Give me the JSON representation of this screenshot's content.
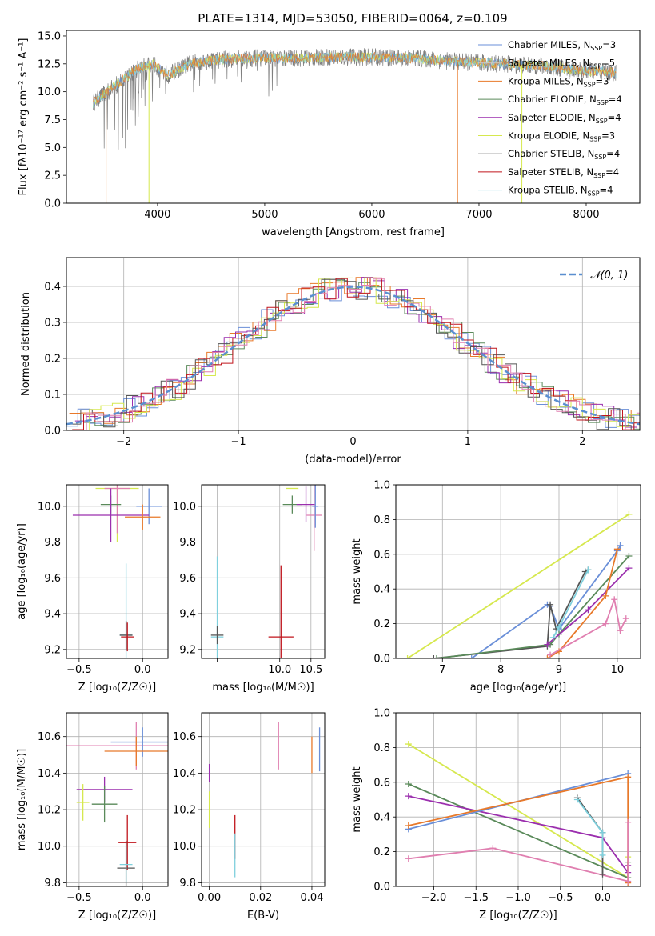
{
  "figure_title": "PLATE=1314, MJD=53050, FIBERID=0064, z=0.109",
  "colors": {
    "chabrier_miles": "#6a8fd8",
    "salpeter_miles": "#e8e8e8",
    "kroupa_miles": "#e8792a",
    "chabrier_elodie": "#5a8a5a",
    "salpeter_elodie": "#9b2fae",
    "kroupa_elodie": "#d6e84e",
    "chabrier_stelib": "#555555",
    "salpeter_stelib": "#c0141b",
    "kroupa_stelib": "#7fd0dd",
    "pink": "#e07fb0",
    "data_gray": "#7f7f7f"
  },
  "chart_data": [
    {
      "type": "line",
      "title": "PLATE=1314, MJD=53050, FIBERID=0064, z=0.109",
      "xlabel": "wavelength [Angstrom, rest frame]",
      "ylabel": "Flux [fλ10⁻¹⁷ erg cm⁻² s⁻¹ A⁻¹]",
      "xlim": [
        3150,
        8500
      ],
      "ylim": [
        0,
        15.5
      ],
      "xticks": [
        4000,
        5000,
        6000,
        7000,
        8000
      ],
      "yticks": [
        0.0,
        2.5,
        5.0,
        7.5,
        10.0,
        12.5,
        15.0
      ],
      "xtick_labels": [
        "4000",
        "5000",
        "6000",
        "7000",
        "8000"
      ],
      "ytick_labels": [
        "0.0",
        "2.5",
        "5.0",
        "7.5",
        "10.0",
        "12.5",
        "15.0"
      ],
      "legend": [
        "Chabrier MILES, N_SSP=3",
        "Salpeter MILES, N_SSP=5",
        "Kroupa MILES, N_SSP=3",
        "Chabrier ELODIE, N_SSP=4",
        "Salpeter ELODIE, N_SSP=4",
        "Kroupa ELODIE, N_SSP=3",
        "Chabrier STELIB, N_SSP=4",
        "Salpeter STELIB, N_SSP=4",
        "Kroupa STELIB, N_SSP=4"
      ],
      "legend_placement": "right",
      "spectrum_envelope": {
        "x": [
          3400,
          3600,
          3800,
          3950,
          4100,
          4300,
          4500,
          4800,
          5000,
          5300,
          5600,
          6000,
          6400,
          6800,
          7200,
          7600,
          8000,
          8280
        ],
        "y": [
          9.0,
          10.5,
          12.0,
          12.5,
          11.5,
          12.5,
          12.8,
          13.0,
          13.0,
          13.0,
          13.1,
          13.1,
          13.0,
          12.7,
          12.5,
          12.3,
          11.9,
          11.7
        ]
      },
      "model_dropouts": [
        3520,
        3920,
        6800,
        7400
      ]
    },
    {
      "type": "histogram",
      "xlabel": "(data-model)/error",
      "ylabel": "Normed distribution",
      "xlim": [
        -2.5,
        2.5
      ],
      "ylim": [
        0,
        0.48
      ],
      "xticks": [
        -2,
        -1,
        0,
        1,
        2
      ],
      "xtick_labels": [
        "−2",
        "−1",
        "0",
        "1",
        "2"
      ],
      "yticks": [
        0.0,
        0.1,
        0.2,
        0.3,
        0.4
      ],
      "ytick_labels": [
        "0.0",
        "0.1",
        "0.2",
        "0.3",
        "0.4"
      ],
      "reference_curve": "N(0,1)",
      "legend": [
        "𝒩(0, 1)"
      ],
      "legend_placement": "top-right",
      "grid": true,
      "bin_width": 0.1
    },
    {
      "type": "errorbar",
      "xlabel": "Z [log₁₀(Z/Z☉)]",
      "ylabel": "age  [log₁₀(age/yr)]",
      "xlim": [
        -0.6,
        0.2
      ],
      "ylim": [
        9.15,
        10.12
      ],
      "xticks": [
        -0.5,
        0.0
      ],
      "xtick_labels": [
        "−0.5",
        "0.0"
      ],
      "yticks": [
        9.2,
        9.4,
        9.6,
        9.8,
        10.0
      ],
      "ytick_labels": [
        "9.2",
        "9.4",
        "9.6",
        "9.8",
        "10.0"
      ],
      "points": [
        {
          "x": -0.2,
          "y": 10.1,
          "xerr": 0.17,
          "yerr": 0.3,
          "color": "kroupa_elodie"
        },
        {
          "x": -0.2,
          "y": 10.1,
          "xerr": 0.1,
          "yerr": 0.25,
          "color": "pink"
        },
        {
          "x": 0.05,
          "y": 10.0,
          "xerr": 0.1,
          "yerr": 0.1,
          "color": "chabrier_miles"
        },
        {
          "x": -0.25,
          "y": 10.01,
          "xerr": 0.08,
          "yerr": 0.05,
          "color": "chabrier_elodie"
        },
        {
          "x": -0.25,
          "y": 9.95,
          "xerr": 0.3,
          "yerr": 0.15,
          "color": "salpeter_elodie"
        },
        {
          "x": 0.0,
          "y": 9.94,
          "xerr": 0.14,
          "yerr": 0.07,
          "color": "kroupa_miles"
        },
        {
          "x": -0.13,
          "y": 9.28,
          "xerr": 0.05,
          "yerr": 0.4,
          "color": "kroupa_stelib"
        },
        {
          "x": -0.13,
          "y": 9.28,
          "xerr": 0.05,
          "yerr": 0.08,
          "color": "chabrier_stelib"
        },
        {
          "x": -0.12,
          "y": 9.27,
          "xerr": 0.05,
          "yerr": 0.08,
          "color": "salpeter_stelib"
        }
      ]
    },
    {
      "type": "errorbar",
      "xlabel": "mass [log₁₀(M/M☉)]",
      "ylabel": "",
      "xlim": [
        8.75,
        10.72
      ],
      "ylim": [
        9.15,
        10.12
      ],
      "xticks": [
        9.0,
        10.0,
        10.5
      ],
      "xtick_labels": [
        "",
        "10.0",
        "10.5"
      ],
      "yticks": [
        9.2,
        9.4,
        9.6,
        9.8,
        10.0
      ],
      "ytick_labels": [
        "9.2",
        "9.4",
        "9.6",
        "9.8",
        "10.0"
      ],
      "points": [
        {
          "x": 10.2,
          "y": 10.1,
          "xerr": 0.1,
          "yerr": 0.0,
          "color": "kroupa_elodie"
        },
        {
          "x": 10.2,
          "y": 10.01,
          "xerr": 0.15,
          "yerr": 0.05,
          "color": "chabrier_elodie"
        },
        {
          "x": 10.42,
          "y": 10.01,
          "xerr": 0.15,
          "yerr": 0.1,
          "color": "salpeter_elodie"
        },
        {
          "x": 10.55,
          "y": 9.95,
          "xerr": 0.12,
          "yerr": 0.2,
          "color": "pink"
        },
        {
          "x": 10.57,
          "y": 10.0,
          "xerr": 0.05,
          "yerr": 0.12,
          "color": "chabrier_miles"
        },
        {
          "x": 9.0,
          "y": 9.27,
          "xerr": 0.1,
          "yerr": 0.45,
          "color": "kroupa_stelib"
        },
        {
          "x": 9.0,
          "y": 9.28,
          "xerr": 0.1,
          "yerr": 0.05,
          "color": "chabrier_stelib"
        },
        {
          "x": 10.02,
          "y": 9.27,
          "xerr": 0.2,
          "yerr": 0.4,
          "color": "salpeter_stelib"
        }
      ]
    },
    {
      "type": "line",
      "xlabel": "age  [log₁₀(age/yr)]",
      "ylabel": "mass weight",
      "xlim": [
        6.2,
        10.4
      ],
      "ylim": [
        0,
        1.0
      ],
      "xticks": [
        7,
        8,
        9,
        10
      ],
      "xtick_labels": [
        "7",
        "8",
        "9",
        "10"
      ],
      "yticks": [
        0.0,
        0.2,
        0.4,
        0.6,
        0.8,
        1.0
      ],
      "ytick_labels": [
        "0.0",
        "0.2",
        "0.4",
        "0.6",
        "0.8",
        "1.0"
      ],
      "series": [
        {
          "color": "kroupa_elodie",
          "x": [
            6.4,
            10.2
          ],
          "y": [
            0.0,
            0.83
          ]
        },
        {
          "color": "chabrier_miles",
          "x": [
            7.5,
            8.8,
            8.85,
            9.0,
            10.0,
            10.05
          ],
          "y": [
            0.0,
            0.31,
            0.3,
            0.17,
            0.62,
            0.65
          ]
        },
        {
          "color": "chabrier_stelib",
          "x": [
            6.85,
            8.8,
            8.85,
            8.95,
            9.45,
            9.5
          ],
          "y": [
            0.0,
            0.07,
            0.31,
            0.17,
            0.5,
            0.51
          ]
        },
        {
          "color": "chabrier_elodie",
          "x": [
            6.9,
            8.85,
            9.0,
            10.2
          ],
          "y": [
            0.0,
            0.08,
            0.14,
            0.59
          ]
        },
        {
          "color": "salpeter_elodie",
          "x": [
            8.8,
            9.5,
            10.2
          ],
          "y": [
            0.08,
            0.28,
            0.52
          ]
        },
        {
          "color": "kroupa_miles",
          "x": [
            8.8,
            9.0,
            9.8,
            10.0
          ],
          "y": [
            0.0,
            0.04,
            0.36,
            0.63
          ]
        },
        {
          "color": "pink",
          "x": [
            8.85,
            9.8,
            9.95,
            10.05,
            10.15
          ],
          "y": [
            0.02,
            0.2,
            0.34,
            0.16,
            0.23
          ]
        },
        {
          "color": "kroupa_stelib",
          "x": [
            8.9,
            9.0,
            9.5
          ],
          "y": [
            0.12,
            0.18,
            0.51
          ]
        }
      ]
    },
    {
      "type": "errorbar",
      "xlabel": "Z [log₁₀(Z/Z☉)]",
      "ylabel": "mass [log₁₀(M/M☉)]",
      "xlim": [
        -0.6,
        0.2
      ],
      "ylim": [
        9.78,
        10.73
      ],
      "xticks": [
        -0.5,
        0.0
      ],
      "xtick_labels": [
        "−0.5",
        "0.0"
      ],
      "yticks": [
        9.8,
        10.0,
        10.2,
        10.4,
        10.6
      ],
      "ytick_labels": [
        "9.8",
        "10.0",
        "10.2",
        "10.4",
        "10.6"
      ],
      "points": [
        {
          "x": -0.05,
          "y": 10.55,
          "xerr": 0.6,
          "yerr": 0.13,
          "color": "pink"
        },
        {
          "x": 0.0,
          "y": 10.57,
          "xerr": 0.25,
          "yerr": 0.08,
          "color": "chabrier_miles"
        },
        {
          "x": -0.05,
          "y": 10.52,
          "xerr": 0.25,
          "yerr": 0.08,
          "color": "kroupa_miles"
        },
        {
          "x": -0.3,
          "y": 10.31,
          "xerr": 0.22,
          "yerr": 0.07,
          "color": "salpeter_elodie"
        },
        {
          "x": -0.47,
          "y": 10.24,
          "xerr": 0.05,
          "yerr": 0.1,
          "color": "kroupa_elodie"
        },
        {
          "x": -0.3,
          "y": 10.23,
          "xerr": 0.1,
          "yerr": 0.1,
          "color": "chabrier_elodie"
        },
        {
          "x": -0.12,
          "y": 10.02,
          "xerr": 0.07,
          "yerr": 0.15,
          "color": "salpeter_stelib"
        },
        {
          "x": -0.13,
          "y": 9.88,
          "xerr": 0.07,
          "yerr": 0.15,
          "color": "chabrier_stelib"
        },
        {
          "x": -0.13,
          "y": 9.9,
          "xerr": 0.05,
          "yerr": 0.1,
          "color": "kroupa_stelib"
        }
      ]
    },
    {
      "type": "errorbar",
      "xlabel": "E(B-V)",
      "ylabel": "",
      "xlim": [
        -0.003,
        0.045
      ],
      "ylim": [
        9.78,
        10.73
      ],
      "xticks": [
        0.0,
        0.02,
        0.04
      ],
      "xtick_labels": [
        "0.00",
        "0.02",
        "0.04"
      ],
      "yticks": [
        9.8,
        10.0,
        10.2,
        10.4,
        10.6
      ],
      "ytick_labels": [
        "9.8",
        "10.0",
        "10.2",
        "10.4",
        "10.6"
      ],
      "points": [
        {
          "x": 0.0,
          "y": 10.4,
          "yerr": 0.05,
          "color": "salpeter_elodie"
        },
        {
          "x": 0.0,
          "y": 10.2,
          "yerr": 0.1,
          "color": "kroupa_elodie"
        },
        {
          "x": 0.01,
          "y": 10.05,
          "yerr": 0.12,
          "color": "salpeter_stelib"
        },
        {
          "x": 0.01,
          "y": 9.95,
          "yerr": 0.12,
          "color": "kroupa_stelib"
        },
        {
          "x": 0.027,
          "y": 10.55,
          "yerr": 0.13,
          "color": "pink"
        },
        {
          "x": 0.04,
          "y": 10.5,
          "yerr": 0.1,
          "color": "kroupa_miles"
        },
        {
          "x": 0.043,
          "y": 10.53,
          "yerr": 0.12,
          "color": "chabrier_miles"
        }
      ]
    },
    {
      "type": "line",
      "xlabel": "Z [log₁₀(Z/Z☉)]",
      "ylabel": "mass weight",
      "xlim": [
        -2.45,
        0.45
      ],
      "ylim": [
        0,
        1.0
      ],
      "xticks": [
        -2.0,
        -1.5,
        -1.0,
        -0.5,
        0.0
      ],
      "xtick_labels": [
        "−2.0",
        "−1.5",
        "−1.0",
        "−0.5",
        "0.0"
      ],
      "yticks": [
        0.0,
        0.2,
        0.4,
        0.6,
        0.8,
        1.0
      ],
      "ytick_labels": [
        "0.0",
        "0.2",
        "0.4",
        "0.6",
        "0.8",
        "1.0"
      ],
      "series": [
        {
          "color": "kroupa_elodie",
          "x": [
            -2.3,
            0.3,
            0.3
          ],
          "y": [
            0.82,
            0.05,
            0.17
          ]
        },
        {
          "color": "chabrier_elodie",
          "x": [
            -2.3,
            0.3,
            0.3
          ],
          "y": [
            0.59,
            0.05,
            0.14
          ]
        },
        {
          "color": "salpeter_elodie",
          "x": [
            -2.3,
            0.0,
            0.3,
            0.3
          ],
          "y": [
            0.52,
            0.28,
            0.08,
            0.12
          ]
        },
        {
          "color": "chabrier_miles",
          "x": [
            -2.3,
            0.3
          ],
          "y": [
            0.33,
            0.65
          ]
        },
        {
          "color": "kroupa_miles",
          "x": [
            -2.3,
            0.3,
            0.3
          ],
          "y": [
            0.35,
            0.63,
            0.02
          ]
        },
        {
          "color": "pink",
          "x": [
            -2.3,
            -1.3,
            0.3,
            0.3
          ],
          "y": [
            0.16,
            0.22,
            0.03,
            0.37
          ]
        },
        {
          "color": "chabrier_stelib",
          "x": [
            -0.3,
            0.0,
            0.0
          ],
          "y": [
            0.51,
            0.31,
            0.07
          ]
        },
        {
          "color": "kroupa_stelib",
          "x": [
            -0.3,
            0.0,
            0.0
          ],
          "y": [
            0.5,
            0.31,
            0.18
          ]
        }
      ]
    }
  ]
}
